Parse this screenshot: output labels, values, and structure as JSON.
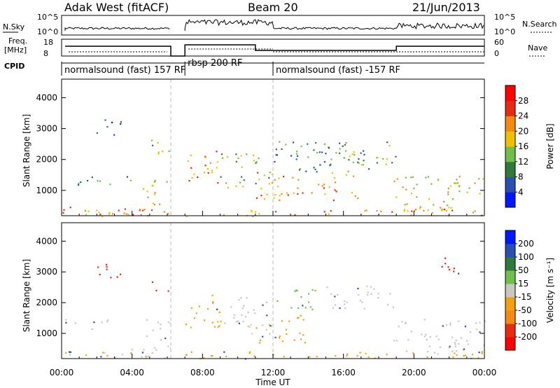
{
  "header": {
    "site": "Adak West (fitACF)",
    "beam": "Beam 20",
    "date": "21/Jun/2013"
  },
  "top_panels": {
    "nsky_label": "N.Sky",
    "nsearch_label": "N.Search",
    "nsky_ticks": [
      "10^5",
      "10^0"
    ],
    "nsearch_ticks": [
      "10^5",
      "10^0"
    ],
    "freq_label_1": "Freq.",
    "freq_label_2": "[MHz]",
    "freq_ticks": [
      "18",
      "8"
    ],
    "nave_label": "Nave",
    "nave_ticks": [
      "60",
      "0"
    ],
    "cpid_label": "CPID"
  },
  "cpid_modes": [
    {
      "label": "normalsound (fast) 157 RF",
      "start_h": 0,
      "end_h": 6.2
    },
    {
      "label": "rbsp 200 RF",
      "start_h": 7.0,
      "end_h": 12.0
    },
    {
      "label": "normalsound (fast) -157 RF",
      "start_h": 12.0,
      "end_h": 24.0
    }
  ],
  "x_axis": {
    "label": "Time UT",
    "ticks": [
      "00:00",
      "04:00",
      "08:00",
      "12:00",
      "16:00",
      "20:00",
      "00:00"
    ]
  },
  "chart_data": [
    {
      "type": "heatmap",
      "title": "Power",
      "ylabel": "Slant Range [km]",
      "xlabel": "Time UT",
      "xlim_hours": [
        0,
        24
      ],
      "ylim": [
        180,
        4600
      ],
      "yticks": [
        1000,
        2000,
        3000,
        4000
      ],
      "colorbar": {
        "label": "Power [dB]",
        "ticks": [
          "4",
          "8",
          "12",
          "16",
          "20",
          "24",
          "28"
        ],
        "colors": [
          "#0018ff",
          "#2a4fb0",
          "#2f7a3a",
          "#6fbf4a",
          "#f0c000",
          "#f58a12",
          "#e82a10",
          "#ff0000"
        ]
      },
      "echo_regions": [
        {
          "t0": 0.2,
          "t1": 2.8,
          "r0": 1150,
          "r1": 1500,
          "level": 2
        },
        {
          "t0": 0.2,
          "t1": 6.0,
          "r0": 200,
          "r1": 500,
          "level": 5
        },
        {
          "t0": 4.5,
          "t1": 6.2,
          "r0": 500,
          "r1": 1500,
          "level": 4
        },
        {
          "t0": 5.0,
          "t1": 6.2,
          "r0": 2000,
          "r1": 2700,
          "level": 3
        },
        {
          "t0": 1.8,
          "t1": 3.4,
          "r0": 2800,
          "r1": 3300,
          "level": 1
        },
        {
          "t0": 3.4,
          "t1": 4.0,
          "r0": 1200,
          "r1": 1500,
          "level": 2
        },
        {
          "t0": 7.0,
          "t1": 9.0,
          "r0": 1200,
          "r1": 2400,
          "level": 5
        },
        {
          "t0": 9.0,
          "t1": 11.8,
          "r0": 1000,
          "r1": 2200,
          "level": 3
        },
        {
          "t0": 11.0,
          "t1": 17.0,
          "r0": 700,
          "r1": 1600,
          "level": 5
        },
        {
          "t0": 12.0,
          "t1": 17.5,
          "r0": 1600,
          "r1": 2600,
          "level": 2
        },
        {
          "t0": 15.0,
          "t1": 19.0,
          "r0": 1800,
          "r1": 2600,
          "level": 3
        },
        {
          "t0": 18.8,
          "t1": 24.0,
          "r0": 300,
          "r1": 1500,
          "level": 4
        },
        {
          "t0": 0.0,
          "t1": 24.0,
          "r0": 180,
          "r1": 420,
          "level": 5
        }
      ]
    },
    {
      "type": "heatmap",
      "title": "Velocity",
      "ylabel": "Slant Range [km]",
      "xlabel": "Time UT",
      "xlim_hours": [
        0,
        24
      ],
      "ylim": [
        180,
        4600
      ],
      "yticks": [
        1000,
        2000,
        3000,
        4000
      ],
      "colorbar": {
        "label": "Velocity [m s⁻¹]",
        "ticks": [
          "-200",
          "-100",
          "-50",
          "-15",
          "15",
          "50",
          "100",
          "200"
        ],
        "colors": [
          "#ff0000",
          "#e82a10",
          "#f58a12",
          "#f3a010",
          "#c8c8c0",
          "#6fbf4a",
          "#2f7a3a",
          "#2a4fb0",
          "#0018ff"
        ]
      },
      "echo_regions": [
        {
          "t0": 0.2,
          "t1": 2.8,
          "r0": 1150,
          "r1": 1500,
          "vel": "gs"
        },
        {
          "t0": 0.2,
          "t1": 6.0,
          "r0": 200,
          "r1": 500,
          "vel": "gs"
        },
        {
          "t0": 4.5,
          "t1": 6.2,
          "r0": 500,
          "r1": 1500,
          "vel": "gs"
        },
        {
          "t0": 5.0,
          "t1": 6.2,
          "r0": 2400,
          "r1": 2700,
          "vel": "red"
        },
        {
          "t0": 1.8,
          "t1": 3.4,
          "r0": 2700,
          "r1": 3300,
          "vel": "red"
        },
        {
          "t0": 7.0,
          "t1": 9.0,
          "r0": 1200,
          "r1": 2400,
          "vel": "orange"
        },
        {
          "t0": 9.0,
          "t1": 11.8,
          "r0": 1000,
          "r1": 2200,
          "vel": "gs"
        },
        {
          "t0": 11.0,
          "t1": 14.0,
          "r0": 700,
          "r1": 1600,
          "vel": "orange"
        },
        {
          "t0": 12.0,
          "t1": 14.5,
          "r0": 1800,
          "r1": 2500,
          "vel": "green"
        },
        {
          "t0": 15.0,
          "t1": 19.0,
          "r0": 1800,
          "r1": 2600,
          "vel": "gs"
        },
        {
          "t0": 18.8,
          "t1": 24.0,
          "r0": 300,
          "r1": 1500,
          "vel": "gs"
        },
        {
          "t0": 21.5,
          "t1": 23.0,
          "r0": 2900,
          "r1": 3500,
          "vel": "red"
        },
        {
          "t0": 0.0,
          "t1": 24.0,
          "r0": 180,
          "r1": 420,
          "vel": "orange"
        }
      ]
    }
  ]
}
